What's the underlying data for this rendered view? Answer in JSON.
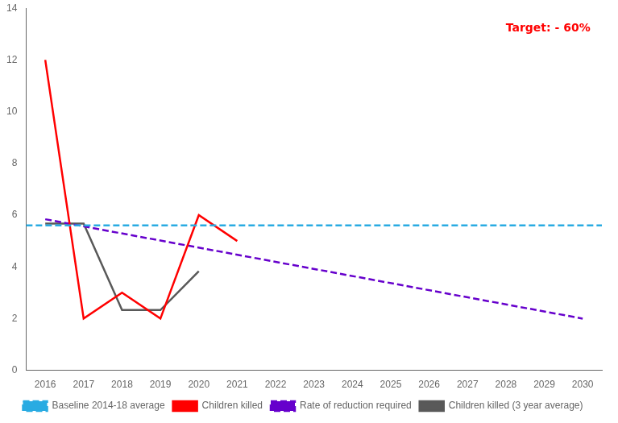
{
  "chart_data": {
    "type": "line",
    "series": [
      {
        "name": "Baseline 2014-18 average",
        "type": "hline",
        "color": "#29abe2",
        "line_style": "dashed",
        "values": [
          5.6
        ]
      },
      {
        "name": "Children killed",
        "color": "#ff0000",
        "line_style": "solid",
        "x": [
          2016,
          2017,
          2018,
          2019,
          2020,
          2021
        ],
        "values": [
          12,
          2,
          3,
          2,
          6,
          5
        ]
      },
      {
        "name": "Rate of reduction required",
        "color": "#6600cc",
        "line_style": "dashed",
        "x": [
          2016,
          2030
        ],
        "values": [
          5.84,
          2.0
        ]
      },
      {
        "name": "Children killed (3 year average)",
        "color": "#595959",
        "line_style": "solid",
        "x": [
          2016,
          2017,
          2018,
          2019,
          2020
        ],
        "values": [
          5.67,
          5.67,
          2.33,
          2.33,
          3.83
        ]
      }
    ],
    "xlim": [
      2015.5,
      2030.5
    ],
    "ylim": [
      0,
      14
    ],
    "xticks": [
      2016,
      2017,
      2018,
      2019,
      2020,
      2021,
      2022,
      2023,
      2024,
      2025,
      2026,
      2027,
      2028,
      2029,
      2030
    ],
    "yticks": [
      0,
      2,
      4,
      6,
      8,
      10,
      12,
      14
    ],
    "annotations": [
      {
        "text": "Target: - 60%",
        "color": "red"
      }
    ],
    "grid": false,
    "legend": "bottom"
  }
}
